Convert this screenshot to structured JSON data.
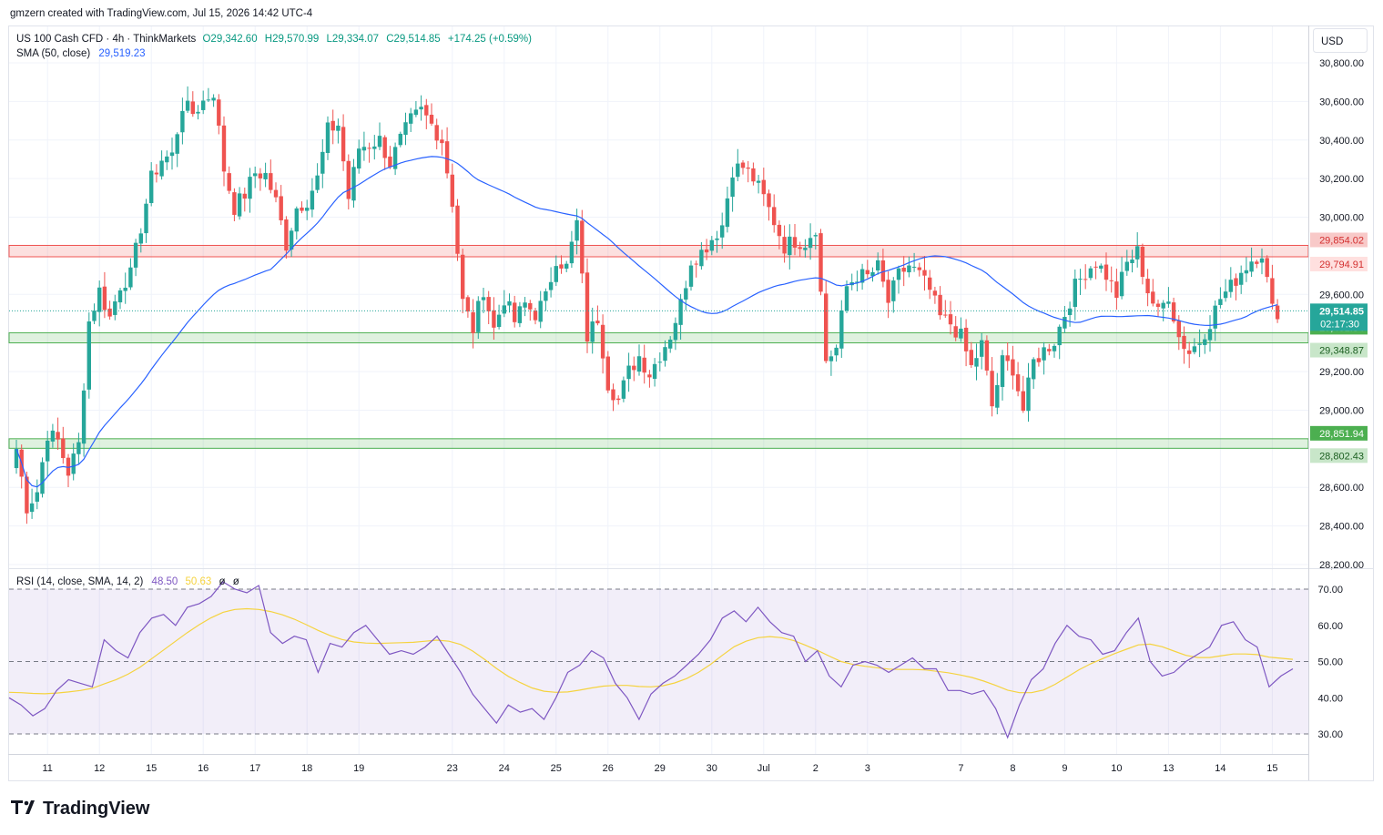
{
  "header": {
    "created_line": "gmzern created with TradingView.com, Jul 15, 2026 14:42 UTC-4",
    "symbol_line": "US 100 Cash CFD · 4h · ThinkMarkets",
    "ohlc": {
      "o": "O29,342.60",
      "h": "H29,570.99",
      "l": "L29,334.07",
      "c": "C29,514.85",
      "chg": "+174.25 (+0.59%)"
    },
    "sma_label": "SMA (50, close)",
    "sma_value": "29,519.23",
    "rsi_label": "RSI (14, close, SMA, 14, 2)",
    "rsi_value": "48.50",
    "rsi_sma_value": "50.63",
    "rsi_extra1": "ø",
    "rsi_extra2": "ø"
  },
  "currency": "USD",
  "footer": {
    "brand": "TradingView"
  },
  "colors": {
    "up": "#26a69a",
    "down": "#ef5350",
    "sma": "#2962ff",
    "rsi": "#7e57c2",
    "rsi_sma": "#f5d33f",
    "grid": "#f0f3fa"
  },
  "chart_data": [
    {
      "type": "candlestick",
      "ylim": [
        28200,
        30900
      ],
      "yticks": [
        {
          "v": 30800,
          "label": "30,800.00"
        },
        {
          "v": 30600,
          "label": "30,600.00"
        },
        {
          "v": 30400,
          "label": "30,400.00"
        },
        {
          "v": 30200,
          "label": "30,200.00"
        },
        {
          "v": 30000,
          "label": "30,000.00"
        },
        {
          "v": 29600,
          "label": "29,600.00"
        },
        {
          "v": 29200,
          "label": "29,200.00"
        },
        {
          "v": 29000,
          "label": "29,000.00"
        },
        {
          "v": 28600,
          "label": "28,600.00"
        },
        {
          "v": 28400,
          "label": "28,400.00"
        },
        {
          "v": 28200,
          "label": "28,200.00"
        }
      ],
      "xticks": [
        {
          "i": 6,
          "label": "11"
        },
        {
          "i": 16,
          "label": "12"
        },
        {
          "i": 26,
          "label": "15"
        },
        {
          "i": 36,
          "label": "16"
        },
        {
          "i": 46,
          "label": "17"
        },
        {
          "i": 56,
          "label": "18"
        },
        {
          "i": 66,
          "label": "19"
        },
        {
          "i": 84,
          "label": "23"
        },
        {
          "i": 94,
          "label": "24"
        },
        {
          "i": 104,
          "label": "25"
        },
        {
          "i": 114,
          "label": "26"
        },
        {
          "i": 124,
          "label": "29"
        },
        {
          "i": 134,
          "label": "30"
        },
        {
          "i": 144,
          "label": "Jul"
        },
        {
          "i": 154,
          "label": "2"
        },
        {
          "i": 164,
          "label": "3"
        },
        {
          "i": 182,
          "label": "7"
        },
        {
          "i": 192,
          "label": "8"
        },
        {
          "i": 202,
          "label": "9"
        },
        {
          "i": 212,
          "label": "10"
        },
        {
          "i": 222,
          "label": "13"
        },
        {
          "i": 232,
          "label": "14"
        },
        {
          "i": 242,
          "label": "15"
        }
      ],
      "zones": [
        {
          "top": 29854.02,
          "bottom": 29794.91,
          "kind": "resistance",
          "top_label": "29,854.02",
          "bottom_label": "29,794.91"
        },
        {
          "top": 29401.34,
          "bottom": 29348.87,
          "kind": "support",
          "top_label": "29,401.34",
          "bottom_label": "29,348.87"
        },
        {
          "top": 28851.94,
          "bottom": 28802.43,
          "kind": "support",
          "top_label": "28,851.94",
          "bottom_label": "28,802.43"
        }
      ],
      "last_price": {
        "value": 29514.85,
        "label": "29,514.85",
        "countdown": "02:17:30"
      },
      "anchors": [
        [
          0,
          28800
        ],
        [
          2,
          28500
        ],
        [
          4,
          28580
        ],
        [
          6,
          28880
        ],
        [
          8,
          28840
        ],
        [
          10,
          28680
        ],
        [
          12,
          28820
        ],
        [
          14,
          29460
        ],
        [
          16,
          29620
        ],
        [
          18,
          29480
        ],
        [
          20,
          29650
        ],
        [
          22,
          29700
        ],
        [
          24,
          29950
        ],
        [
          26,
          30200
        ],
        [
          28,
          30300
        ],
        [
          30,
          30320
        ],
        [
          32,
          30580
        ],
        [
          34,
          30540
        ],
        [
          36,
          30600
        ],
        [
          38,
          30650
        ],
        [
          40,
          30250
        ],
        [
          42,
          30050
        ],
        [
          44,
          30120
        ],
        [
          46,
          30230
        ],
        [
          48,
          30220
        ],
        [
          50,
          30080
        ],
        [
          52,
          29860
        ],
        [
          54,
          30050
        ],
        [
          56,
          30090
        ],
        [
          58,
          30200
        ],
        [
          60,
          30450
        ],
        [
          62,
          30480
        ],
        [
          64,
          30100
        ],
        [
          66,
          30360
        ],
        [
          68,
          30380
        ],
        [
          70,
          30400
        ],
        [
          72,
          30280
        ],
        [
          74,
          30400
        ],
        [
          76,
          30500
        ],
        [
          78,
          30550
        ],
        [
          80,
          30480
        ],
        [
          82,
          30400
        ],
        [
          84,
          30080
        ],
        [
          86,
          29560
        ],
        [
          88,
          29420
        ],
        [
          90,
          29630
        ],
        [
          92,
          29420
        ],
        [
          94,
          29580
        ],
        [
          96,
          29460
        ],
        [
          98,
          29550
        ],
        [
          100,
          29500
        ],
        [
          102,
          29580
        ],
        [
          104,
          29790
        ],
        [
          106,
          29740
        ],
        [
          108,
          29970
        ],
        [
          110,
          29380
        ],
        [
          112,
          29480
        ],
        [
          114,
          29140
        ],
        [
          116,
          29050
        ],
        [
          118,
          29200
        ],
        [
          120,
          29280
        ],
        [
          122,
          29190
        ],
        [
          124,
          29290
        ],
        [
          126,
          29390
        ],
        [
          128,
          29550
        ],
        [
          130,
          29780
        ],
        [
          132,
          29820
        ],
        [
          134,
          29890
        ],
        [
          136,
          29960
        ],
        [
          138,
          30250
        ],
        [
          140,
          30260
        ],
        [
          142,
          30200
        ],
        [
          144,
          30100
        ],
        [
          146,
          29980
        ],
        [
          148,
          29850
        ],
        [
          150,
          29880
        ],
        [
          152,
          29870
        ],
        [
          154,
          29950
        ],
        [
          156,
          29260
        ],
        [
          158,
          29320
        ],
        [
          160,
          29640
        ],
        [
          162,
          29700
        ],
        [
          164,
          29690
        ],
        [
          166,
          29740
        ],
        [
          168,
          29560
        ],
        [
          170,
          29700
        ],
        [
          172,
          29750
        ],
        [
          174,
          29700
        ],
        [
          176,
          29620
        ],
        [
          178,
          29480
        ],
        [
          180,
          29450
        ],
        [
          182,
          29380
        ],
        [
          184,
          29220
        ],
        [
          186,
          29340
        ],
        [
          188,
          29020
        ],
        [
          190,
          29250
        ],
        [
          192,
          29220
        ],
        [
          194,
          29000
        ],
        [
          196,
          29250
        ],
        [
          198,
          29310
        ],
        [
          200,
          29360
        ],
        [
          202,
          29500
        ],
        [
          204,
          29640
        ],
        [
          206,
          29720
        ],
        [
          208,
          29770
        ],
        [
          210,
          29700
        ],
        [
          212,
          29600
        ],
        [
          214,
          29760
        ],
        [
          216,
          29820
        ],
        [
          218,
          29620
        ],
        [
          220,
          29500
        ],
        [
          222,
          29600
        ],
        [
          224,
          29380
        ],
        [
          226,
          29300
        ],
        [
          228,
          29360
        ],
        [
          230,
          29460
        ],
        [
          232,
          29580
        ],
        [
          234,
          29640
        ],
        [
          236,
          29720
        ],
        [
          238,
          29780
        ],
        [
          240,
          29820
        ],
        [
          242,
          29520
        ],
        [
          243,
          29514
        ]
      ]
    },
    {
      "type": "line",
      "name": "RSI",
      "ylim": [
        27,
        72
      ],
      "yticks": [
        {
          "v": 70,
          "label": "70.00"
        },
        {
          "v": 60,
          "label": "60.00"
        },
        {
          "v": 50,
          "label": "50.00"
        },
        {
          "v": 40,
          "label": "40.00"
        },
        {
          "v": 30,
          "label": "30.00"
        }
      ],
      "band": [
        30,
        70
      ],
      "midline": 50,
      "values": [
        40,
        38,
        35,
        37,
        42,
        45,
        44,
        43,
        56,
        53,
        51,
        58,
        62,
        63,
        60,
        65,
        66,
        68,
        72,
        70,
        69,
        71,
        58,
        55,
        57,
        56,
        47,
        55,
        54,
        58,
        60,
        56,
        52,
        53,
        52,
        54,
        57,
        52,
        47,
        41,
        37,
        33,
        38,
        36,
        37,
        34,
        40,
        47,
        49,
        53,
        51,
        44,
        40,
        34,
        41,
        44,
        46,
        49,
        52,
        56,
        62,
        64,
        61,
        65,
        61,
        58,
        57,
        50,
        53,
        46,
        43,
        49,
        50,
        49,
        47,
        49,
        51,
        48,
        48,
        42,
        42,
        41,
        42,
        37,
        29,
        38,
        45,
        48,
        55,
        60,
        57,
        56,
        52,
        53,
        58,
        62,
        50,
        46,
        47,
        50,
        52,
        54,
        60,
        61,
        56,
        54,
        43,
        46,
        48
      ],
      "sma": [
        41.5,
        41.4,
        41.2,
        41.1,
        41.3,
        41.6,
        42.0,
        42.6,
        43.8,
        45.0,
        46.5,
        48.4,
        50.8,
        53.2,
        55.6,
        58.0,
        60.2,
        62.1,
        63.6,
        64.4,
        64.6,
        64.4,
        63.8,
        62.9,
        61.7,
        60.2,
        58.6,
        57.2,
        56.1,
        55.4,
        55.1,
        55.0,
        55.1,
        55.2,
        55.3,
        55.6,
        55.9,
        55.6,
        54.7,
        52.9,
        50.6,
        48.1,
        45.9,
        44.2,
        42.7,
        41.8,
        41.5,
        41.6,
        42.1,
        42.7,
        43.2,
        43.4,
        43.4,
        43.1,
        43.0,
        43.3,
        44.1,
        45.3,
        47.0,
        49.2,
        51.7,
        54.1,
        55.6,
        56.6,
        56.9,
        56.6,
        55.8,
        54.5,
        53.1,
        51.5,
        50.0,
        49.2,
        48.7,
        48.3,
        47.9,
        47.8,
        47.8,
        47.7,
        47.3,
        46.9,
        46.3,
        45.6,
        44.6,
        43.4,
        42.1,
        41.4,
        41.4,
        42.1,
        43.7,
        45.7,
        47.7,
        49.4,
        50.8,
        52.2,
        53.4,
        54.6,
        54.8,
        54.1,
        52.9,
        51.7,
        51.1,
        51.1,
        51.6,
        52.1,
        52.1,
        51.9,
        51.2,
        50.9,
        50.6
      ]
    }
  ]
}
